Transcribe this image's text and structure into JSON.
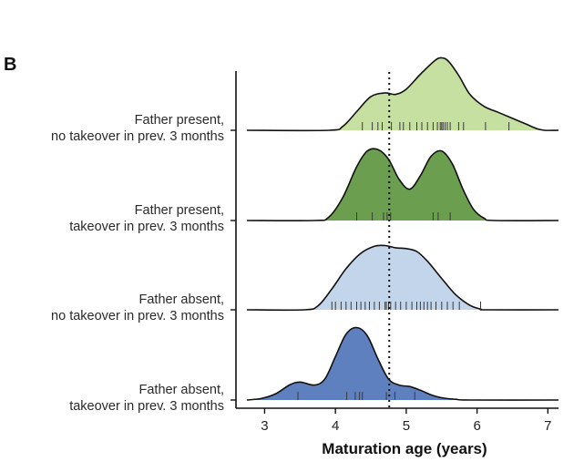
{
  "panel_label": "B",
  "chart_data": {
    "type": "ridgeline-density",
    "xlabel": "Maturation age (years)",
    "xlim": [
      2.75,
      7.15
    ],
    "xticks": [
      3,
      4,
      5,
      6,
      7
    ],
    "reference_line": {
      "x": 4.76,
      "style": "dotted"
    },
    "series": [
      {
        "label_line1": "Father present,",
        "label_line2": "no takeover in prev. 3 months",
        "color": "#c5e0a0",
        "density_x": [
          2.75,
          3.9,
          4.1,
          4.3,
          4.5,
          4.7,
          4.85,
          5.0,
          5.2,
          5.4,
          5.5,
          5.6,
          5.75,
          5.9,
          6.1,
          6.3,
          6.5,
          6.7,
          6.85,
          6.95,
          7.15
        ],
        "density_y": [
          0,
          0,
          0.05,
          0.25,
          0.45,
          0.5,
          0.48,
          0.55,
          0.75,
          0.93,
          0.97,
          0.92,
          0.72,
          0.48,
          0.32,
          0.24,
          0.16,
          0.08,
          0.02,
          0,
          0
        ],
        "rug": [
          4.38,
          4.52,
          4.6,
          4.66,
          4.79,
          4.91,
          4.96,
          5.05,
          5.15,
          5.22,
          5.3,
          5.38,
          5.44,
          5.48,
          5.5,
          5.52,
          5.55,
          5.58,
          5.62,
          5.74,
          5.81,
          6.12,
          6.45
        ]
      },
      {
        "label_line1": "Father present,",
        "label_line2": "takeover in prev. 3 months",
        "color": "#6b9e4e",
        "density_x": [
          2.75,
          3.7,
          3.9,
          4.1,
          4.3,
          4.45,
          4.6,
          4.75,
          4.9,
          5.05,
          5.2,
          5.35,
          5.5,
          5.65,
          5.8,
          5.95,
          6.1,
          6.25,
          7.15
        ],
        "density_y": [
          0,
          0,
          0.04,
          0.3,
          0.72,
          0.93,
          0.95,
          0.82,
          0.55,
          0.42,
          0.6,
          0.86,
          0.93,
          0.76,
          0.42,
          0.15,
          0.03,
          0,
          0
        ],
        "rug": [
          4.3,
          4.52,
          4.68,
          4.73,
          4.78,
          5.38,
          5.45,
          5.62
        ]
      },
      {
        "label_line1": "Father absent,",
        "label_line2": "no takeover in prev. 3 months",
        "color": "#c3d5ea",
        "density_x": [
          2.75,
          3.55,
          3.75,
          3.95,
          4.15,
          4.35,
          4.55,
          4.7,
          4.85,
          5.0,
          5.15,
          5.3,
          5.5,
          5.7,
          5.9,
          6.05,
          6.15,
          7.15
        ],
        "density_y": [
          0,
          0,
          0.05,
          0.28,
          0.55,
          0.75,
          0.85,
          0.86,
          0.83,
          0.82,
          0.78,
          0.65,
          0.42,
          0.2,
          0.06,
          0.01,
          0,
          0
        ],
        "rug": [
          3.95,
          4.0,
          4.08,
          4.15,
          4.22,
          4.3,
          4.36,
          4.42,
          4.48,
          4.55,
          4.62,
          4.7,
          4.72,
          4.75,
          4.78,
          4.85,
          4.92,
          5.0,
          5.08,
          5.15,
          5.2,
          5.25,
          5.3,
          5.35,
          5.42,
          5.5,
          5.58,
          5.66,
          5.75,
          6.05
        ]
      },
      {
        "label_line1": "Father absent,",
        "label_line2": "takeover in prev. 3 months",
        "color": "#5f80bf",
        "density_x": [
          2.75,
          2.95,
          3.15,
          3.35,
          3.5,
          3.7,
          3.85,
          4.0,
          4.15,
          4.3,
          4.45,
          4.6,
          4.75,
          4.9,
          5.05,
          5.2,
          5.35,
          5.5,
          5.7,
          5.9,
          7.15
        ],
        "density_y": [
          0,
          0.02,
          0.08,
          0.2,
          0.24,
          0.2,
          0.28,
          0.58,
          0.88,
          0.97,
          0.86,
          0.55,
          0.28,
          0.2,
          0.18,
          0.13,
          0.07,
          0.03,
          0.01,
          0,
          0
        ],
        "rug": [
          3.47,
          4.16,
          4.28,
          4.34,
          4.38,
          4.72,
          4.84,
          5.12
        ]
      }
    ]
  }
}
